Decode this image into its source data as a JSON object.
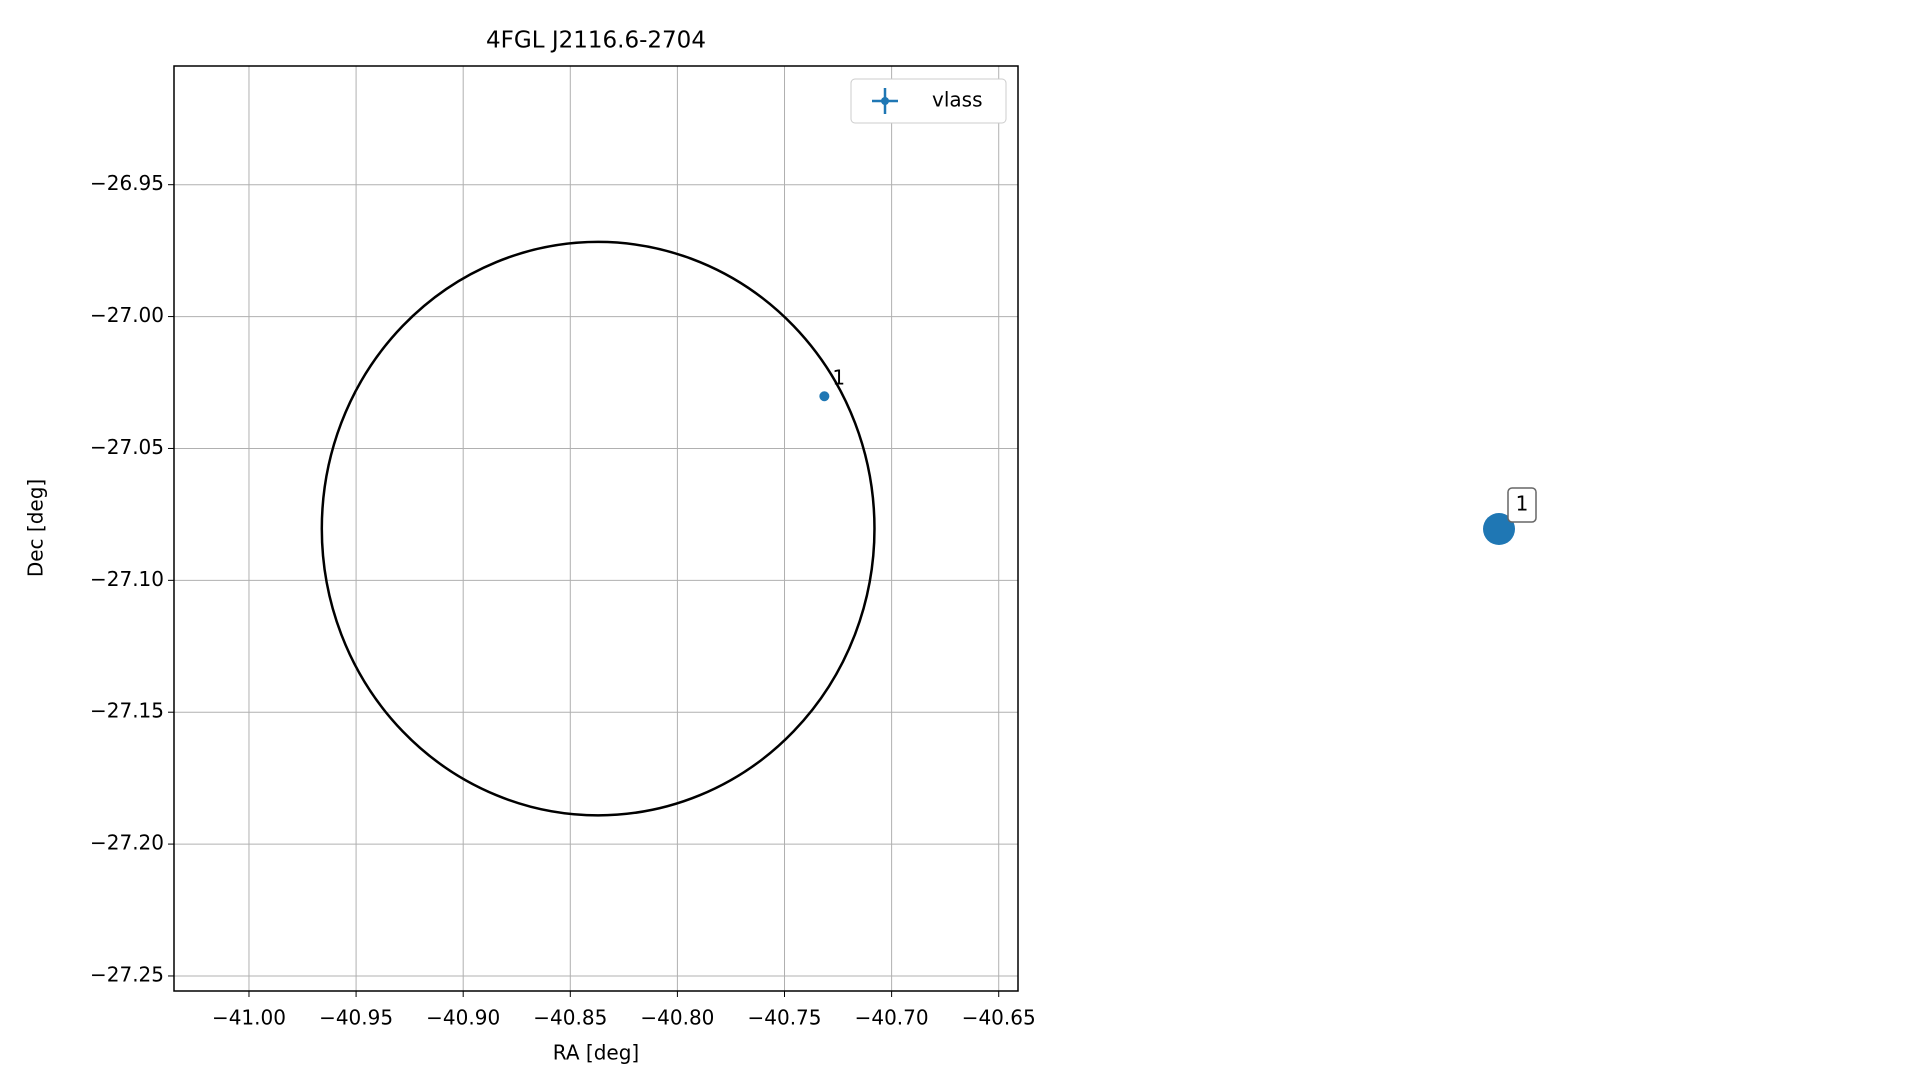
{
  "chart_data": {
    "type": "scatter",
    "title": "4FGL J2116.6-2704",
    "xlabel": "RA [deg]",
    "ylabel": "Dec [deg]",
    "xlim": [
      -41.035,
      -40.641
    ],
    "ylim": [
      -27.2557,
      -26.905
    ],
    "xticks": [
      {
        "value": -41.0,
        "label": "−41.00"
      },
      {
        "value": -40.95,
        "label": "−40.95"
      },
      {
        "value": -40.9,
        "label": "−40.90"
      },
      {
        "value": -40.85,
        "label": "−40.85"
      },
      {
        "value": -40.8,
        "label": "−40.80"
      },
      {
        "value": -40.75,
        "label": "−40.75"
      },
      {
        "value": -40.7,
        "label": "−40.70"
      },
      {
        "value": -40.65,
        "label": "−40.65"
      }
    ],
    "yticks": [
      {
        "value": -26.95,
        "label": "−26.95"
      },
      {
        "value": -27.0,
        "label": "−27.00"
      },
      {
        "value": -27.05,
        "label": "−27.05"
      },
      {
        "value": -27.1,
        "label": "−27.10"
      },
      {
        "value": -27.15,
        "label": "−27.15"
      },
      {
        "value": -27.2,
        "label": "−27.20"
      },
      {
        "value": -27.25,
        "label": "−27.25"
      }
    ],
    "grid": true,
    "legend": "upper right",
    "series": [
      {
        "name": "vlass",
        "color": "#1f77b4",
        "x": [
          -40.7314
        ],
        "values": [
          -27.0302
        ],
        "labels": [
          "1"
        ]
      }
    ],
    "region": {
      "ra": -40.837,
      "dec": -27.0804,
      "ra_radius": 0.129,
      "dec_radius": 0.1087,
      "color": "#000000"
    },
    "side_marker": {
      "label": "1",
      "color": "#1f77b4"
    }
  }
}
